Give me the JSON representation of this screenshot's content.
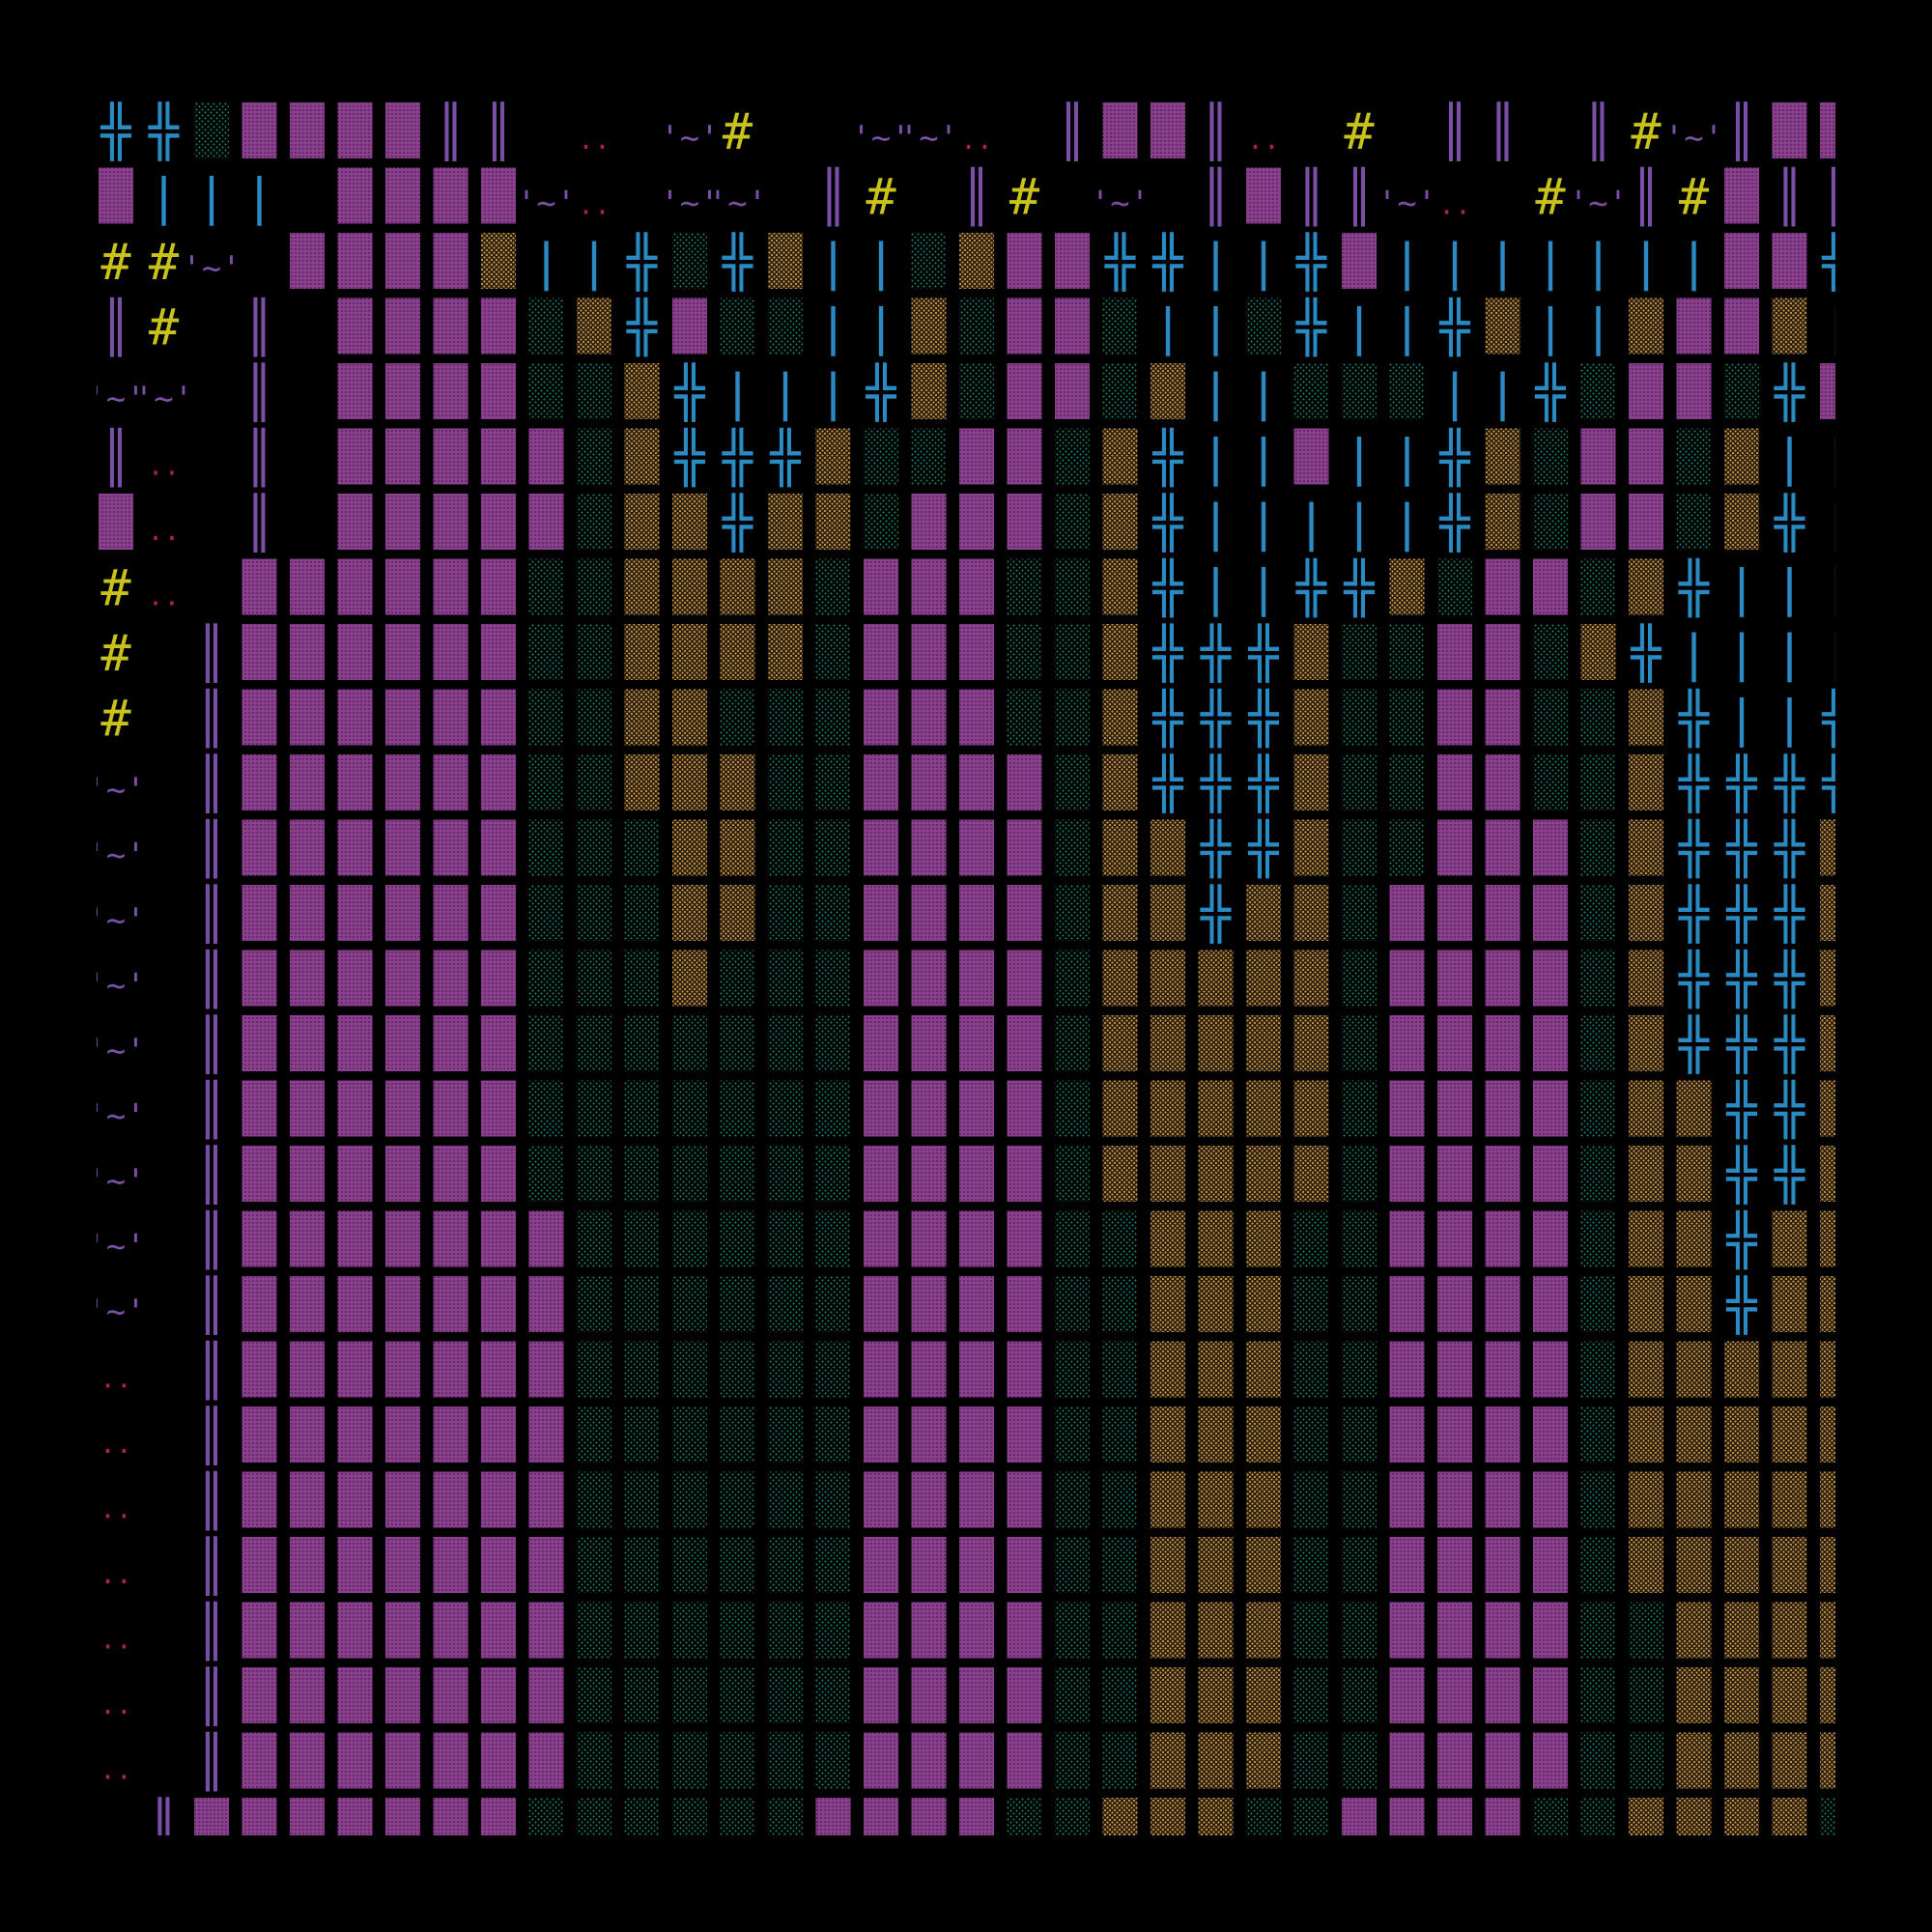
{
  "palette": {
    "background": "#000000",
    "M": "#8b3f8f",
    "G": "#0f3f34",
    "T": "#6b5230",
    "P": "#7a4fa6",
    "B": "#2a8ac3",
    "Y": "#c9c21a",
    "D": "#a81f66"
  },
  "glyphs": {
    "P": "║",
    "B": "╬",
    "Y": "#",
    "D": "..",
    "W": "'~'",
    "b": "|"
  },
  "grid": [
    "BBGMMMMPP.D.WY..WWD.PMMPD.Y.PP.PYWPMMPWMD.D.D..PW",
    "Mbbb.MMMMWD.WW.PY.PY.W.PMPPWD.YWPYMPPPPPD.PMWPY",
    "YYW.MMMMTbbBGBTbbGTMMBBbbBMbbbbbbbMMBbbGTbbBbbT",
    "PY.P.MMMMGTBMGGbbTGMMGbbGBbbBTbbTMMTbbTMGGBG",
    "WW.P.MMMMGGTBbbbBTGMMGTbbGGGbbBGMMGBMTBTGb",
    "PD.P.MMMMMGTBBBTGGMMGTBbbMbbBTGMMGTbbGGGbbB",
    "MD.P.MMMMMGTTBTTGMMMGTBbbbbbBTGMMGTBbbMMbbT",
    "YD.MMMMMMGGTTTTGMMMGGTBbbBBTGMMGTBbbbbbBT",
    "Y.PMMMMMMGGTTTTGMMMGGTBBBTGGMMGTBbbbbbBT",
    "Y.PMMMMMMGGTTGGGMMMGGTBBBTGGMMGGTBbbBBT",
    "W.PMMMMMMGGTTTGGMMMMGTBBBTGGMMGGTBBBBT",
    "W.PMMMMMMGGGTTGGMMMMGTTBBTGGMMMGTBBBTT",
    "W.PMMMMMMGGGTTGGMMMMGTTBTTGMMMMGTBBBTT",
    "W.PMMMMMMGGGTGGGMMMMGTTTTTGMMMMGTBBBTG",
    "W.PMMMMMMGGGGGGGMMMMGTTTTTGMMMMGTBBBTG",
    "W.PMMMMMMGGGGGGGMMMMGTTTTTGMMMMGTTBBTG",
    "W.PMMMMMMGGGGGGGMMMMGTTTTTGMMMMGTTBBTG",
    "W.PMMMMMMMGGGGGGMMMMGGTTTGGMMMMGTTBTTG",
    "W.PMMMMMMMGGGGGGMMMMGGTTTGGMMMMGTTBTTG",
    "D.PMMMMMMMGGGGGGMMMMGGTTTGGMMMMGTTTTTG",
    "D.PMMMMMMMGGGGGGMMMMGGTTTGGMMMMGTTTTTG",
    "D.PMMMMMMMGGGGGGMMMMGGTTTGGMMMMGTTTTTG",
    "D.PMMMMMMMGGGGGGMMMMGGTTTGGMMMMGTTTTTG",
    "D.PMMMMMMMGGGGGGMMMMGGTTTGGMMMMGGTTTTG",
    "D.PMMMMMMMGGGGGGMMMMGGTTTGGMMMMGGTTTTG",
    "D.PMMMMMMMGGGGGGMMMMGGTTTGGMMMMGGTTTTG",
    ".PMMMMMMMGGGGGGMMMMGGTTTGGMMMMGGTTTTG"
  ]
}
